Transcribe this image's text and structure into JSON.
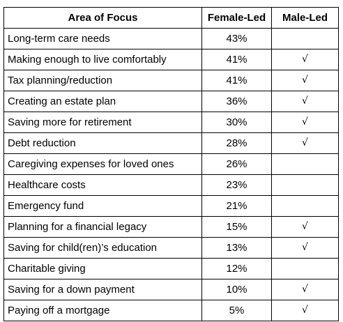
{
  "table": {
    "headers": [
      "Area of Focus",
      "Female-Led",
      "Male-Led"
    ],
    "rows": [
      {
        "area": "Long-term care needs",
        "female": "43%",
        "male": ""
      },
      {
        "area": "Making enough to live comfortably",
        "female": "41%",
        "male": "√"
      },
      {
        "area": "Tax planning/reduction",
        "female": "41%",
        "male": "√"
      },
      {
        "area": "Creating an estate plan",
        "female": "36%",
        "male": "√"
      },
      {
        "area": "Saving more for retirement",
        "female": "30%",
        "male": "√"
      },
      {
        "area": "Debt reduction",
        "female": "28%",
        "male": "√"
      },
      {
        "area": "Caregiving expenses for loved ones",
        "female": "26%",
        "male": ""
      },
      {
        "area": "Healthcare costs",
        "female": "23%",
        "male": ""
      },
      {
        "area": "Emergency fund",
        "female": "21%",
        "male": ""
      },
      {
        "area": "Planning for a financial legacy",
        "female": "15%",
        "male": "√"
      },
      {
        "area": "Saving for child(ren)’s education",
        "female": "13%",
        "male": "√"
      },
      {
        "area": "Charitable giving",
        "female": "12%",
        "male": ""
      },
      {
        "area": "Saving for a down payment",
        "female": "10%",
        "male": "√"
      },
      {
        "area": "Paying off a mortgage",
        "female": "5%",
        "male": "√"
      }
    ]
  }
}
